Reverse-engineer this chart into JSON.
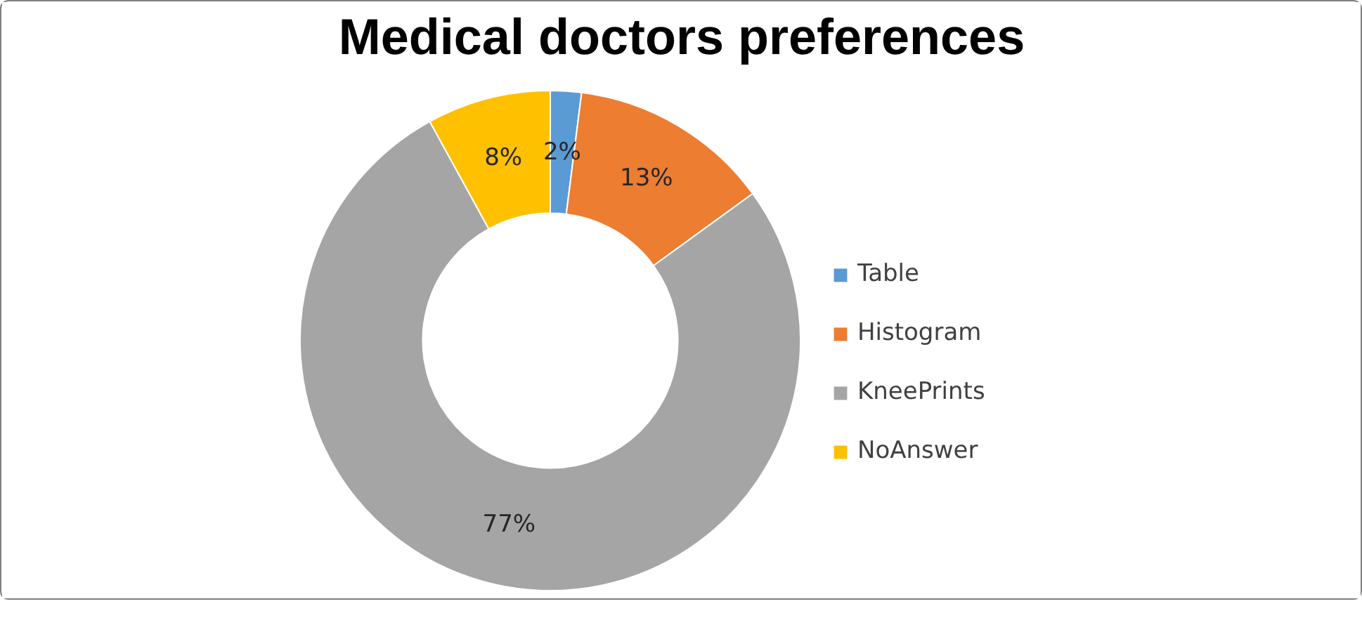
{
  "chart_data": {
    "type": "donut",
    "title": "Medical doctors preferences",
    "categories": [
      "Table",
      "Histogram",
      "KneePrints",
      "NoAnswer"
    ],
    "values": [
      2,
      13,
      77,
      8
    ],
    "colors": [
      "#5b9bd5",
      "#ed7d31",
      "#a5a5a5",
      "#ffc000"
    ],
    "value_labels": [
      "2%",
      "13%",
      "77%",
      "8%"
    ],
    "legend": "right"
  }
}
